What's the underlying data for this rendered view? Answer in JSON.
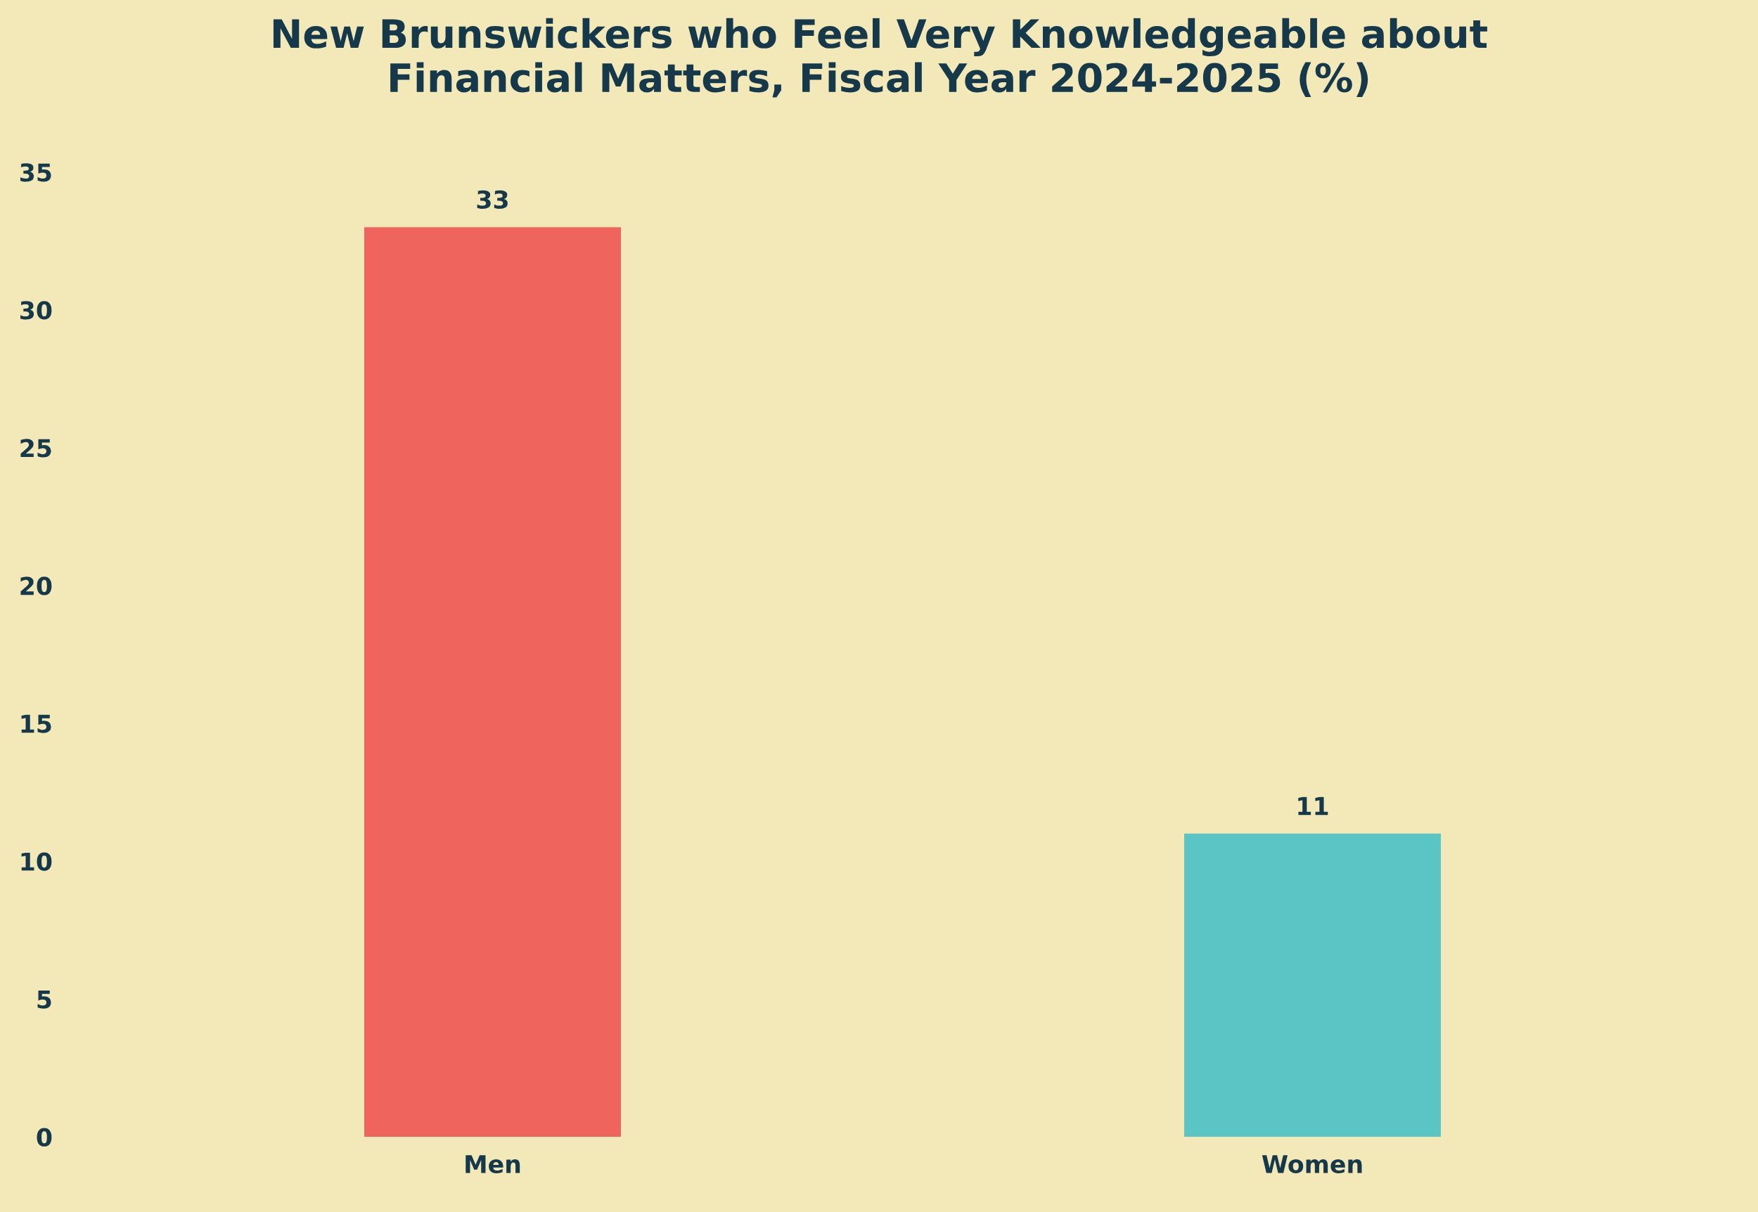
{
  "chart_data": {
    "type": "bar",
    "title": "New Brunswickers who Feel Very Knowledgeable about\nFinancial Matters, Fiscal Year 2024-2025 (%)",
    "categories": [
      "Men",
      "Women"
    ],
    "values": [
      33,
      11
    ],
    "colors": [
      "#f0645e",
      "#5bc4c5"
    ],
    "ylim": [
      0,
      35
    ],
    "yticks": [
      0,
      5,
      10,
      15,
      20,
      25,
      30,
      35
    ],
    "grid": false,
    "data_labels": true
  }
}
